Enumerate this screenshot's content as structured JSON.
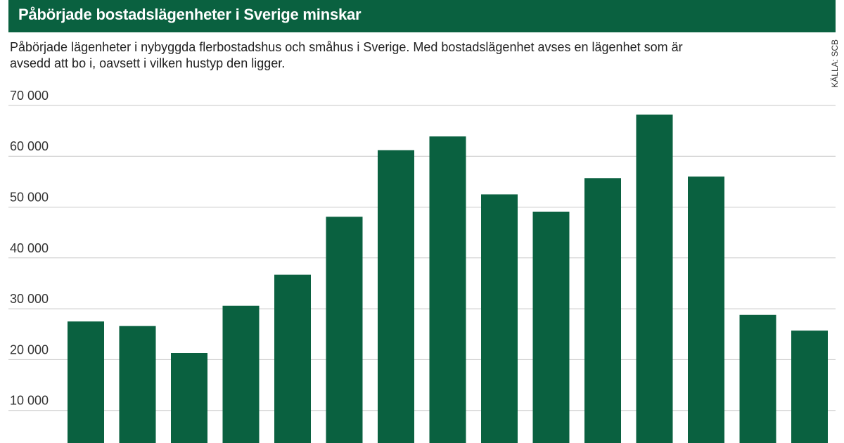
{
  "header": {
    "title": "Påbörjade bostadslägenheter i Sverige minskar",
    "subtitle": "Påbörjade lägenheter i nybyggda flerbostadshus och småhus i Sverige. Med bostadslägenhet avses en lägenhet som är avsedd att bo i, oavsett i vilken hustyp den ligger.",
    "source": "KÄLLA: SCB"
  },
  "colors": {
    "brand_green": "#0a6140",
    "bar_green": "#0a6140",
    "gridline": "#c8c8c8"
  },
  "chart_data": {
    "type": "bar",
    "title": "Påbörjade bostadslägenheter i Sverige minskar",
    "xlabel": "",
    "ylabel": "",
    "ylim": [
      0,
      70000
    ],
    "yticks": [
      10000,
      20000,
      30000,
      40000,
      50000,
      60000,
      70000
    ],
    "ytick_labels": [
      "10 000",
      "20 000",
      "30 000",
      "40 000",
      "50 000",
      "60 000",
      "70 000"
    ],
    "grid": true,
    "values": [
      27500,
      26600,
      21300,
      30600,
      36700,
      48100,
      61200,
      63900,
      52500,
      49100,
      55700,
      68200,
      56000,
      28800,
      25700
    ]
  }
}
